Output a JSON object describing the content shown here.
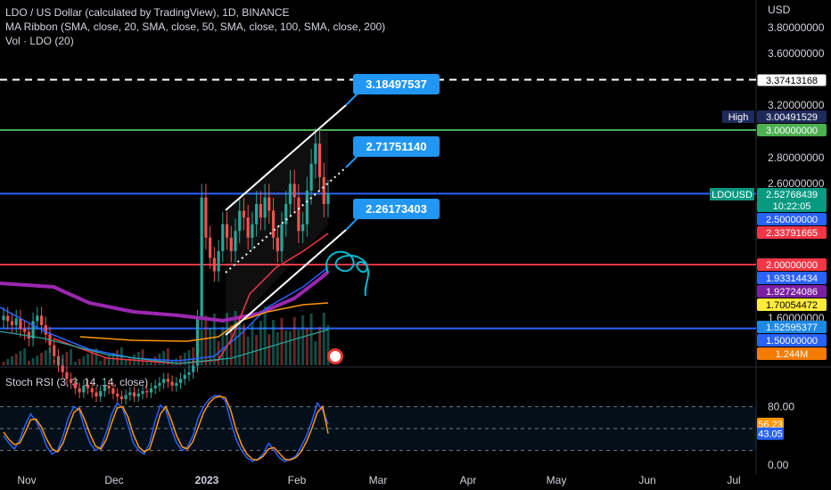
{
  "legend": {
    "symbol_line": "LDO / US Dollar (calculated by TradingView), 1D, BINANCE",
    "ma_ribbon": "MA Ribbon (SMA, close, 20, SMA, close, 50, SMA, close, 100, SMA, close, 200)",
    "volume": "Vol · LDO (20)"
  },
  "currency": "USD",
  "colors": {
    "background": "#000000",
    "up_candle": "#26a69a",
    "down_candle": "#ef5350",
    "blue_line": "#2962ff",
    "red_line": "#f23645",
    "green_line": "#4caf50",
    "callout": "#2196f3",
    "ma20": "#f23645",
    "ma50": "#ff9800",
    "ma100": "#2962ff",
    "ma200": "#9c27b0",
    "stoch_k": "#2962ff",
    "stoch_d": "#ff9800"
  },
  "chart_data": [
    {
      "type": "candlestick",
      "title": "LDO / US Dollar (calculated by TradingView), 1D, BINANCE",
      "x_ticks": [
        "Nov",
        "Dec",
        "2023",
        "Feb",
        "Mar",
        "Apr",
        "May",
        "Jun",
        "Jul"
      ],
      "y_ticks": [
        "3.80000000",
        "3.60000000",
        "3.20000000",
        "2.80000000",
        "2.60000000",
        "1.60000000"
      ],
      "ylim": [
        1.0,
        3.9
      ],
      "close": [
        1.62,
        1.58,
        1.55,
        1.6,
        1.52,
        1.5,
        1.45,
        1.58,
        1.62,
        1.55,
        1.48,
        1.4,
        1.32,
        1.25,
        1.2,
        1.15,
        1.12,
        1.08,
        1.05,
        1.1,
        1.08,
        1.05,
        1.02,
        1.06,
        1.1,
        1.08,
        1.04,
        1.02,
        1.0,
        1.03,
        1.05,
        1.02,
        1.04,
        1.06,
        1.05,
        1.08,
        1.1,
        1.12,
        1.15,
        1.13,
        1.1,
        1.12,
        1.15,
        1.18,
        1.2,
        1.25,
        1.6,
        2.5,
        2.2,
        2.05,
        1.95,
        2.1,
        2.3,
        2.2,
        2.1,
        2.25,
        2.4,
        2.35,
        2.2,
        2.3,
        2.45,
        2.35,
        2.5,
        2.4,
        2.2,
        2.1,
        2.3,
        2.45,
        2.6,
        2.5,
        2.25,
        2.3,
        2.55,
        2.75,
        2.9,
        2.65,
        2.45,
        2.53
      ],
      "annotations": {
        "upper_channel_value": "3.18497537",
        "mid_channel_value": "2.71751140",
        "lower_channel_value": "2.26173403"
      },
      "price_tags": [
        {
          "label": "",
          "value": "3.37413168",
          "style": "white"
        },
        {
          "label": "High",
          "value": "3.00491529",
          "style": "navy"
        },
        {
          "label": "",
          "value": "3.00000000",
          "style": "green"
        },
        {
          "label": "LDOUSD",
          "value": "2.52768439",
          "style": "teal"
        },
        {
          "label": "",
          "value": "10:22:05",
          "style": "teal"
        },
        {
          "label": "",
          "value": "2.50000000",
          "style": "blue"
        },
        {
          "label": "",
          "value": "2.33791665",
          "style": "red"
        },
        {
          "label": "",
          "value": "2.00000000",
          "style": "red"
        },
        {
          "label": "",
          "value": "1.93314434",
          "style": "blue"
        },
        {
          "label": "",
          "value": "1.92724086",
          "style": "purple"
        },
        {
          "label": "",
          "value": "1.70054472",
          "style": "yellow"
        },
        {
          "label": "",
          "value": "1.52595377",
          "style": "blue2"
        },
        {
          "label": "",
          "value": "1.50000000",
          "style": "blue"
        },
        {
          "label": "",
          "value": "1.244M",
          "style": "orange"
        }
      ],
      "horizontal_lines": [
        {
          "value": 3.37413168,
          "style": "dashed-white"
        },
        {
          "value": 3.0,
          "style": "green"
        },
        {
          "value": 2.52768439,
          "style": "blue"
        },
        {
          "value": 2.0,
          "style": "red"
        },
        {
          "value": 1.52595377,
          "style": "blue"
        }
      ]
    },
    {
      "type": "line",
      "title": "Stoch RSI (3, 3, 14, 14, close)",
      "y_ticks": [
        "80.00",
        "0.00"
      ],
      "ylim": [
        0,
        100
      ],
      "band": [
        20,
        80
      ],
      "series": [
        {
          "name": "K",
          "value": "56.23",
          "values": [
            40,
            30,
            22,
            35,
            55,
            70,
            60,
            45,
            25,
            15,
            20,
            40,
            65,
            80,
            75,
            50,
            30,
            20,
            25,
            45,
            70,
            85,
            78,
            55,
            30,
            20,
            15,
            30,
            60,
            82,
            75,
            50,
            30,
            20,
            25,
            40,
            65,
            80,
            90,
            95,
            95,
            88,
            60,
            35,
            20,
            10,
            5,
            8,
            15,
            30,
            20,
            10,
            5,
            8,
            12,
            25,
            40,
            60,
            85,
            75,
            56
          ]
        },
        {
          "name": "D",
          "value": "43.05",
          "values": [
            45,
            35,
            28,
            30,
            45,
            62,
            63,
            52,
            35,
            22,
            18,
            30,
            52,
            72,
            78,
            62,
            42,
            26,
            22,
            35,
            58,
            78,
            80,
            66,
            42,
            25,
            18,
            22,
            45,
            70,
            80,
            62,
            40,
            25,
            22,
            32,
            52,
            72,
            85,
            92,
            94,
            92,
            75,
            48,
            28,
            15,
            8,
            7,
            12,
            22,
            24,
            16,
            8,
            7,
            10,
            18,
            32,
            50,
            72,
            80,
            43
          ]
        }
      ]
    }
  ]
}
